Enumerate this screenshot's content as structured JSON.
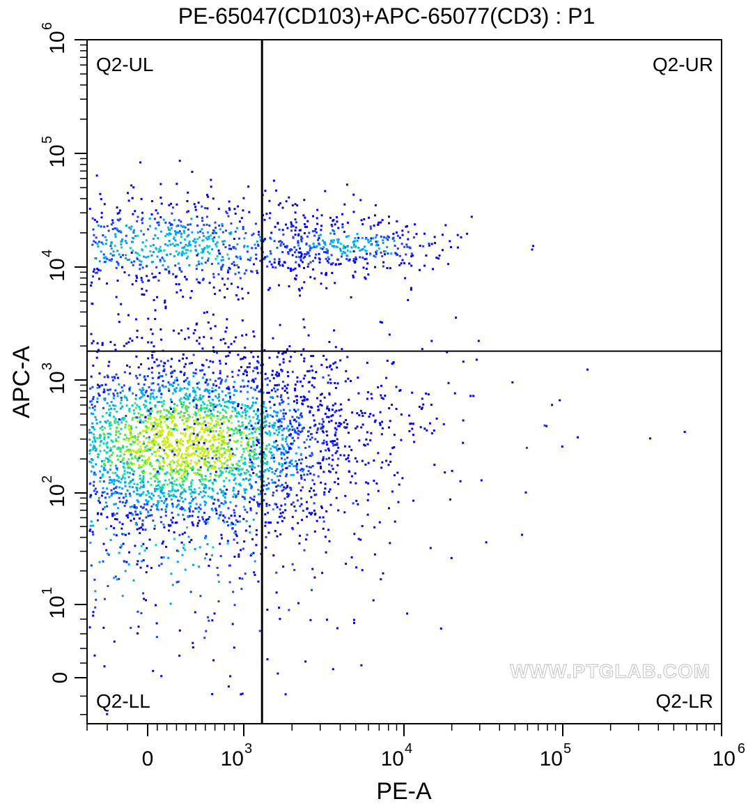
{
  "chart_data": {
    "type": "scatter",
    "title": "PE-65047(CD103)+APC-65077(CD3) : P1",
    "xlabel": "PE-A",
    "ylabel": "APC-A",
    "x_scale": "biexponential",
    "y_scale": "biexponential",
    "xlim": [
      -300,
      1000000
    ],
    "ylim": [
      -5,
      1000000
    ],
    "grid": false,
    "legend": "none",
    "x_ticks": [
      {
        "value": 0,
        "base": "0",
        "exp": ""
      },
      {
        "value": 1000,
        "base": "10",
        "exp": "3"
      },
      {
        "value": 10000,
        "base": "10",
        "exp": "4"
      },
      {
        "value": 100000,
        "base": "10",
        "exp": "5"
      },
      {
        "value": 1000000,
        "base": "10",
        "exp": "6"
      }
    ],
    "y_ticks": [
      {
        "value": 0,
        "base": "0",
        "exp": ""
      },
      {
        "value": 10,
        "base": "10",
        "exp": "1"
      },
      {
        "value": 100,
        "base": "10",
        "exp": "2"
      },
      {
        "value": 1000,
        "base": "10",
        "exp": "3"
      },
      {
        "value": 10000,
        "base": "10",
        "exp": "4"
      },
      {
        "value": 100000,
        "base": "10",
        "exp": "5"
      },
      {
        "value": 1000000,
        "base": "10",
        "exp": "6"
      }
    ],
    "quadrant_gate": {
      "x": 1300,
      "y": 1800
    },
    "quadrant_labels": {
      "ul": "Q2-UL",
      "ur": "Q2-UR",
      "ll": "Q2-LL",
      "lr": "Q2-LR"
    },
    "density_colors": [
      "#0000ff",
      "#1e3cff",
      "#00a0ff",
      "#00d2c8",
      "#50e650",
      "#c8f000"
    ],
    "populations": [
      {
        "x": 350,
        "y": 280,
        "count": 3300,
        "sx": 0.55,
        "sy": 0.42
      },
      {
        "x": 150,
        "y": 60,
        "count": 500,
        "sx": 0.7,
        "sy": 0.7
      },
      {
        "x": 250,
        "y": 16000,
        "count": 900,
        "sx": 0.6,
        "sy": 0.22
      },
      {
        "x": 4500,
        "y": 16000,
        "count": 320,
        "sx": 0.32,
        "sy": 0.12
      },
      {
        "x": 2000,
        "y": 600,
        "count": 220,
        "sx": 0.45,
        "sy": 0.35
      },
      {
        "x": 60000,
        "y": 400,
        "count": 22,
        "sx": 0.55,
        "sy": 0.4
      }
    ],
    "watermark": "WWW.PTGLAB.COM"
  }
}
